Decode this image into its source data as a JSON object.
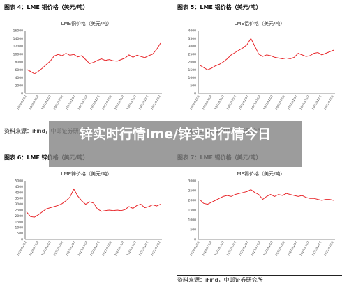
{
  "overlay": {
    "title": "锌实时行情lme/锌实时行情今日"
  },
  "colors": {
    "line": "#e8262a",
    "axis": "#222222",
    "text": "#444444"
  },
  "figures": [
    {
      "heading": "图表 4：LME 铜价格（美元/吨）",
      "footer": "资料来源：iFind，中邮证券研究所",
      "chart_data": {
        "type": "line",
        "title": "LME铜价格（美元/吨）",
        "y_ticks": [
          "16000",
          "14000",
          "12000",
          "10000",
          "8000",
          "6000",
          "4000",
          "2000",
          "0"
        ],
        "ylim": [
          0,
          16000
        ],
        "x_ticks": [
          "2020/01/02",
          "2020/07/02",
          "2021/01/02",
          "2021/07/02",
          "2022/01/02",
          "2022/07/02",
          "2023/01/02",
          "2023/07/02",
          "2024/01/02",
          "2024/07/02",
          "2025/01/02",
          "2025/07/02"
        ],
        "values": [
          6100,
          5600,
          5000,
          5600,
          6400,
          7300,
          8200,
          9500,
          9900,
          9600,
          10200,
          9700,
          9900,
          9300,
          9600,
          8600,
          7600,
          7900,
          8400,
          8800,
          8400,
          8600,
          8300,
          8200,
          8600,
          9000,
          9800,
          9200,
          9700,
          9400,
          9100,
          9600,
          10000,
          11200,
          12800
        ]
      }
    },
    {
      "heading": "图表 5：LME 铝价格（美元/吨）",
      "footer": "资料来源：iFind，中邮证券研究所",
      "chart_data": {
        "type": "line",
        "title": "LME铝价格（美元/吨）",
        "y_ticks": [
          "4000",
          "3500",
          "3000",
          "2500",
          "2000",
          "1500",
          "1000",
          "500",
          "0"
        ],
        "ylim": [
          0,
          4000
        ],
        "x_ticks": [
          "2020/01/02",
          "2020/07/02",
          "2021/01/02",
          "2021/07/02",
          "2022/01/02",
          "2022/07/02",
          "2023/01/02",
          "2023/07/02",
          "2024/01/02",
          "2024/07/02",
          "2025/01/02",
          "2025/07/02"
        ],
        "values": [
          1800,
          1650,
          1500,
          1600,
          1750,
          1850,
          2000,
          2200,
          2450,
          2600,
          2750,
          2900,
          3100,
          3500,
          3000,
          2500,
          2350,
          2450,
          2400,
          2300,
          2250,
          2200,
          2250,
          2200,
          2300,
          2550,
          2450,
          2350,
          2400,
          2550,
          2600,
          2450,
          2550,
          2650,
          2750
        ]
      }
    },
    {
      "heading": "图表 6：LME 锌价格（美元/吨）",
      "footer": "",
      "chart_data": {
        "type": "line",
        "title": "LME锌价格（美元/吨）",
        "y_ticks": [
          "5000",
          "4500",
          "4000",
          "3500",
          "3000",
          "2500",
          "2000",
          "1500",
          "1000",
          "500",
          "0"
        ],
        "ylim": [
          0,
          5000
        ],
        "x_ticks": [
          "2020/01/02",
          "2020/07/02",
          "2021/01/02",
          "2021/07/02",
          "2022/01/02",
          "2022/07/02",
          "2023/01/02",
          "2023/07/02",
          "2024/01/02",
          "2024/07/02",
          "2025/01/02",
          "2025/07/02"
        ],
        "values": [
          2350,
          1950,
          1900,
          2100,
          2350,
          2600,
          2700,
          2800,
          2900,
          3050,
          3300,
          3600,
          4300,
          3700,
          3300,
          3000,
          3200,
          3100,
          2600,
          2400,
          2450,
          2500,
          2450,
          2500,
          2450,
          2550,
          2800,
          2650,
          2900,
          3000,
          2700,
          2800,
          2950,
          2850,
          3000
        ]
      }
    },
    {
      "heading": "图表 7：LME 锡价格（美元/吨）",
      "footer": "资料来源：iFind，中邮证券研究所",
      "chart_data": {
        "type": "line",
        "title": "LME锡价格（美元/吨）",
        "y_ticks": [
          "3000",
          "2500",
          "2000",
          "1500",
          "1000",
          "500",
          "0"
        ],
        "ylim": [
          0,
          3000
        ],
        "x_ticks": [
          "2020/01/02",
          "2020/07/02",
          "2021/01/02",
          "2021/07/02",
          "2022/01/02",
          "2022/07/02",
          "2023/01/02",
          "2023/07/02",
          "2024/01/02",
          "2024/07/02",
          "2025/01/02",
          "2025/07/02"
        ],
        "values": [
          2050,
          1850,
          1800,
          1900,
          2000,
          2100,
          2200,
          2250,
          2200,
          2300,
          2350,
          2400,
          2450,
          2550,
          2400,
          2300,
          2050,
          2200,
          2300,
          2200,
          2300,
          2250,
          2350,
          2300,
          2250,
          2200,
          2250,
          2150,
          2100,
          2100,
          2050,
          2000,
          2050,
          2050,
          2000
        ]
      }
    }
  ]
}
